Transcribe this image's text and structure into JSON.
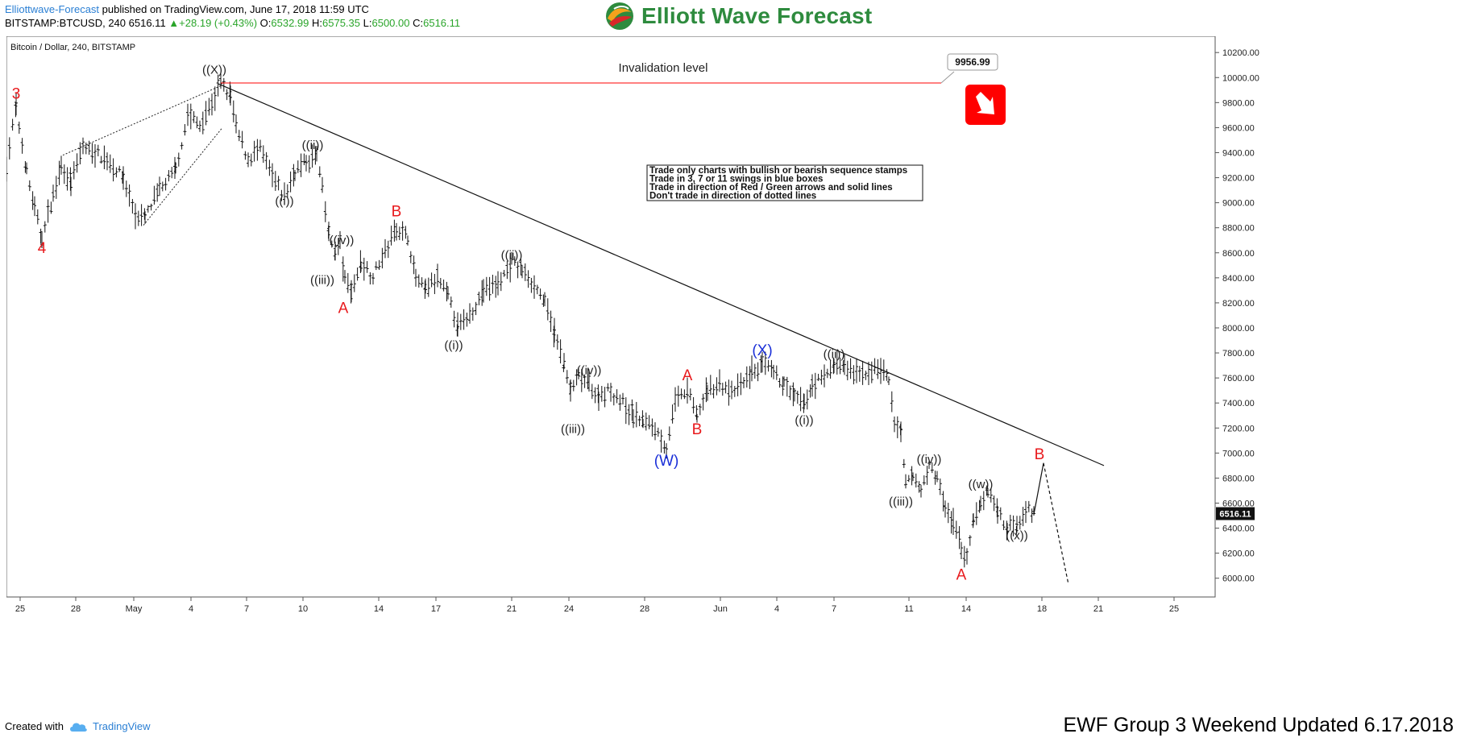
{
  "header": {
    "author": "Elliottwave-Forecast",
    "published_text": "published on TradingView.com, June 17, 2018 11:59 UTC",
    "symbol": "BITSTAMP:BTCUSD, 240",
    "last": "6516.11",
    "change_arrow": "▲",
    "change": "+28.19 (+0.43%)",
    "o_label": "O:",
    "o_value": "6532.99",
    "h_label": "H:",
    "h_value": "6575.35",
    "l_label": "L:",
    "l_value": "6500.00",
    "c_label": "C:",
    "c_value": "6516.11"
  },
  "logo": {
    "text": "Elliott Wave Forecast",
    "icon": "elliott-wave-globe-icon"
  },
  "footer": {
    "created_with": "Created with",
    "tradingview": "TradingView",
    "tradingview_icon": "tradingview-cloud-icon",
    "ewf_note": "EWF Group 3 Weekend Updated 6.17.2018"
  },
  "chart_data": {
    "type": "candlestick",
    "title": "Bitcoin / Dollar, 240, BITSTAMP",
    "x_tick_labels": [
      "25",
      "28",
      "May",
      "4",
      "7",
      "10",
      "14",
      "17",
      "21",
      "24",
      "28",
      "Jun",
      "4",
      "7",
      "11",
      "14",
      "18",
      "21",
      "25"
    ],
    "y_ticks": [
      10200,
      10000,
      9800,
      9600,
      9400,
      9200,
      9000,
      8800,
      8600,
      8400,
      8200,
      8000,
      7800,
      7600,
      7400,
      7200,
      7000,
      6800,
      6600,
      6400,
      6200,
      6000
    ],
    "ylim": [
      5850,
      10330
    ],
    "last_price_label": "6516.11",
    "invalidation": {
      "label": "Invalidation level",
      "value": 9956.99,
      "value_text": "9956.99",
      "color": "#ff0000"
    },
    "info_box": [
      "Trade only charts with bullish or bearish sequence stamps",
      "Trade in 3, 7 or 11 swings in blue boxes",
      "Trade in direction of Red / Green arrows and solid lines",
      "Don't trade in direction of dotted lines"
    ],
    "direction_arrow": {
      "icon": "bearish-arrow-icon",
      "color": "#ff0000"
    },
    "colors": {
      "red": "#e8191c",
      "blue": "#1a2fd8",
      "black": "#222222"
    },
    "wave_labels": [
      {
        "text": "3",
        "color": "red",
        "t": 12,
        "v": 9830
      },
      {
        "text": "4",
        "color": "red",
        "t": 44,
        "v": 8600
      },
      {
        "text": "((X))",
        "color": "black",
        "t": 258,
        "v": 10030
      },
      {
        "text": "((i))",
        "color": "black",
        "t": 345,
        "v": 8980
      },
      {
        "text": "((ii))",
        "color": "black",
        "t": 380,
        "v": 9430
      },
      {
        "text": "((iv))",
        "color": "black",
        "t": 416,
        "v": 8670
      },
      {
        "text": "((iii))",
        "color": "black",
        "t": 392,
        "v": 8350
      },
      {
        "text": "A",
        "color": "red",
        "t": 418,
        "v": 8120
      },
      {
        "text": "B",
        "color": "red",
        "t": 484,
        "v": 8890
      },
      {
        "text": "((i))",
        "color": "black",
        "t": 555,
        "v": 7830
      },
      {
        "text": "((ii))",
        "color": "black",
        "t": 627,
        "v": 8550
      },
      {
        "text": "((iv))",
        "color": "black",
        "t": 723,
        "v": 7630
      },
      {
        "text": "((iii))",
        "color": "black",
        "t": 703,
        "v": 7160
      },
      {
        "text": "(W)",
        "color": "blue",
        "t": 819,
        "v": 6900
      },
      {
        "text": "A",
        "color": "red",
        "t": 845,
        "v": 7580
      },
      {
        "text": "B",
        "color": "red",
        "t": 857,
        "v": 7150
      },
      {
        "text": "(X)",
        "color": "blue",
        "t": 938,
        "v": 7780
      },
      {
        "text": "((i))",
        "color": "black",
        "t": 990,
        "v": 7230
      },
      {
        "text": "((ii))",
        "color": "black",
        "t": 1027,
        "v": 7760
      },
      {
        "text": "((iv))",
        "color": "black",
        "t": 1145,
        "v": 6920
      },
      {
        "text": "((iii))",
        "color": "black",
        "t": 1110,
        "v": 6580
      },
      {
        "text": "A",
        "color": "red",
        "t": 1185,
        "v": 5990
      },
      {
        "text": "((w))",
        "color": "black",
        "t": 1209,
        "v": 6720
      },
      {
        "text": "((x))",
        "color": "black",
        "t": 1254,
        "v": 6310
      },
      {
        "text": "B",
        "color": "red",
        "t": 1282,
        "v": 6950
      }
    ],
    "path_points": [
      [
        0,
        9300
      ],
      [
        12,
        9760
      ],
      [
        25,
        9250
      ],
      [
        35,
        8950
      ],
      [
        44,
        8720
      ],
      [
        58,
        9050
      ],
      [
        68,
        9300
      ],
      [
        80,
        9150
      ],
      [
        95,
        9450
      ],
      [
        110,
        9400
      ],
      [
        125,
        9350
      ],
      [
        145,
        9200
      ],
      [
        160,
        8900
      ],
      [
        172,
        8880
      ],
      [
        190,
        9100
      ],
      [
        210,
        9250
      ],
      [
        225,
        9700
      ],
      [
        240,
        9620
      ],
      [
        255,
        9800
      ],
      [
        266,
        9956
      ],
      [
        278,
        9850
      ],
      [
        285,
        9600
      ],
      [
        300,
        9350
      ],
      [
        315,
        9420
      ],
      [
        330,
        9200
      ],
      [
        345,
        9050
      ],
      [
        358,
        9250
      ],
      [
        372,
        9320
      ],
      [
        385,
        9380
      ],
      [
        392,
        9100
      ],
      [
        400,
        8750
      ],
      [
        408,
        8600
      ],
      [
        414,
        8680
      ],
      [
        420,
        8380
      ],
      [
        428,
        8300
      ],
      [
        440,
        8520
      ],
      [
        455,
        8420
      ],
      [
        470,
        8600
      ],
      [
        484,
        8800
      ],
      [
        498,
        8720
      ],
      [
        508,
        8400
      ],
      [
        520,
        8300
      ],
      [
        535,
        8400
      ],
      [
        548,
        8250
      ],
      [
        560,
        8000
      ],
      [
        575,
        8100
      ],
      [
        592,
        8300
      ],
      [
        610,
        8350
      ],
      [
        627,
        8520
      ],
      [
        640,
        8460
      ],
      [
        655,
        8350
      ],
      [
        668,
        8200
      ],
      [
        680,
        7950
      ],
      [
        692,
        7700
      ],
      [
        700,
        7500
      ],
      [
        710,
        7600
      ],
      [
        723,
        7560
      ],
      [
        735,
        7450
      ],
      [
        750,
        7500
      ],
      [
        765,
        7400
      ],
      [
        778,
        7300
      ],
      [
        790,
        7250
      ],
      [
        805,
        7200
      ],
      [
        819,
        7050
      ],
      [
        830,
        7400
      ],
      [
        845,
        7500
      ],
      [
        857,
        7300
      ],
      [
        870,
        7500
      ],
      [
        885,
        7550
      ],
      [
        900,
        7480
      ],
      [
        915,
        7560
      ],
      [
        925,
        7650
      ],
      [
        938,
        7700
      ],
      [
        952,
        7640
      ],
      [
        965,
        7550
      ],
      [
        978,
        7450
      ],
      [
        990,
        7380
      ],
      [
        1000,
        7550
      ],
      [
        1015,
        7600
      ],
      [
        1027,
        7720
      ],
      [
        1040,
        7680
      ],
      [
        1055,
        7620
      ],
      [
        1070,
        7650
      ],
      [
        1085,
        7680
      ],
      [
        1095,
        7580
      ],
      [
        1102,
        7250
      ],
      [
        1110,
        7150
      ],
      [
        1116,
        6750
      ],
      [
        1125,
        6820
      ],
      [
        1135,
        6700
      ],
      [
        1145,
        6880
      ],
      [
        1155,
        6820
      ],
      [
        1165,
        6550
      ],
      [
        1175,
        6450
      ],
      [
        1185,
        6250
      ],
      [
        1192,
        6150
      ],
      [
        1200,
        6450
      ],
      [
        1209,
        6600
      ],
      [
        1218,
        6700
      ],
      [
        1230,
        6550
      ],
      [
        1242,
        6400
      ],
      [
        1254,
        6420
      ],
      [
        1265,
        6560
      ],
      [
        1275,
        6530
      ]
    ],
    "projection": [
      [
        1275,
        6510
      ],
      [
        1287,
        6920
      ],
      [
        1318,
        5950
      ]
    ],
    "trendline": [
      [
        263,
        9950
      ],
      [
        1362,
        6900
      ]
    ],
    "ending_diagonal": {
      "upper": [
        [
          70,
          9380
        ],
        [
          268,
          9940
        ]
      ],
      "lower": [
        [
          170,
          8820
        ],
        [
          268,
          9600
        ]
      ]
    }
  }
}
